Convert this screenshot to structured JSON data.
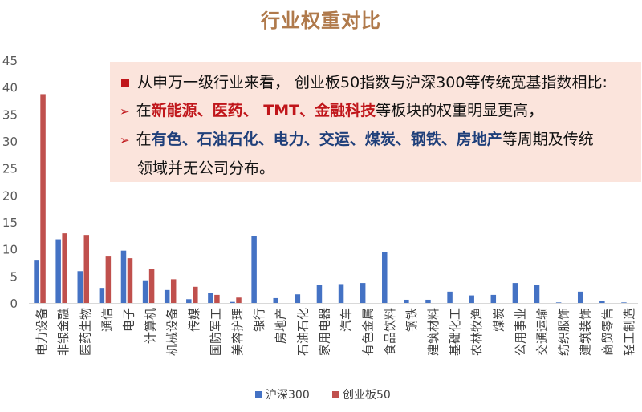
{
  "title": "行业权重对比",
  "note": {
    "line1": "从申万一级行业来看， 创业板50指数与沪深300等传统宽基指数相比:",
    "line2": {
      "prefix": "在",
      "items": [
        "新能源",
        "、",
        "医药",
        "、 ",
        "TMT",
        "、",
        "金融科技"
      ],
      "suffix": "等板块的权重明显更高，"
    },
    "line3": {
      "prefix": "在",
      "items": [
        "有色",
        "、",
        "石油石化",
        "、",
        "电力",
        "、",
        "交运",
        "、",
        "煤炭",
        "、",
        "钢铁",
        "、",
        "房地产"
      ],
      "suffix": "等周期及传统"
    },
    "line4": "领域并无公司分布。"
  },
  "chart_data": {
    "type": "bar",
    "ylim": [
      0,
      45
    ],
    "yticks": [
      0,
      5,
      10,
      15,
      20,
      25,
      30,
      35,
      40,
      45
    ],
    "categories": [
      "电力设备",
      "非银金融",
      "医药生物",
      "通信",
      "电子",
      "计算机",
      "机械设备",
      "传媒",
      "国防军工",
      "美容护理",
      "银行",
      "房地产",
      "石油石化",
      "家用电器",
      "汽车",
      "有色金属",
      "食品饮料",
      "钢铁",
      "建筑材料",
      "基础化工",
      "农林牧渔",
      "煤炭",
      "公用事业",
      "交通运输",
      "纺织服饰",
      "建筑装饰",
      "商贸零售",
      "轻工制造"
    ],
    "series": [
      {
        "name": "沪深300",
        "color": "#4472c4",
        "values": [
          8.0,
          11.8,
          5.9,
          2.8,
          9.7,
          4.2,
          2.4,
          0.7,
          1.9,
          0.2,
          12.4,
          0.9,
          1.6,
          3.4,
          3.5,
          3.7,
          9.4,
          0.6,
          0.6,
          2.1,
          1.4,
          1.5,
          3.7,
          3.3,
          0.1,
          2.1,
          0.4,
          0.1
        ]
      },
      {
        "name": "创业板50",
        "color": "#c0504d",
        "values": [
          38.7,
          12.9,
          12.6,
          8.6,
          8.3,
          6.3,
          4.4,
          3.0,
          1.5,
          1.0,
          0,
          0,
          0,
          0,
          0,
          0,
          0,
          0,
          0,
          0,
          0,
          0,
          0,
          0,
          0,
          0,
          0,
          0
        ]
      }
    ]
  }
}
